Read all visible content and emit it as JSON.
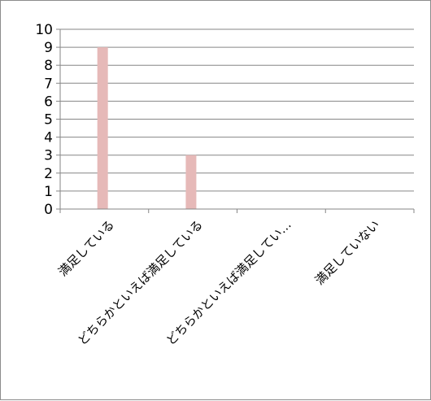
{
  "chart_data": {
    "type": "bar",
    "title": "",
    "xlabel": "",
    "ylabel": "",
    "categories": [
      "満足している",
      "どちらかといえば満足している",
      "どちらかといえば満足してい…",
      "満足していない"
    ],
    "series": [
      {
        "values": [
          9,
          3,
          0,
          0
        ]
      }
    ],
    "ylim": [
      0,
      10
    ],
    "y_ticks": [
      "0",
      "1",
      "2",
      "3",
      "4",
      "5",
      "6",
      "7",
      "8",
      "9",
      "10"
    ],
    "grid": true,
    "legend": "none",
    "bar_color": "#e6b9b8",
    "grid_color": "#868686",
    "axis_color": "#868686"
  }
}
